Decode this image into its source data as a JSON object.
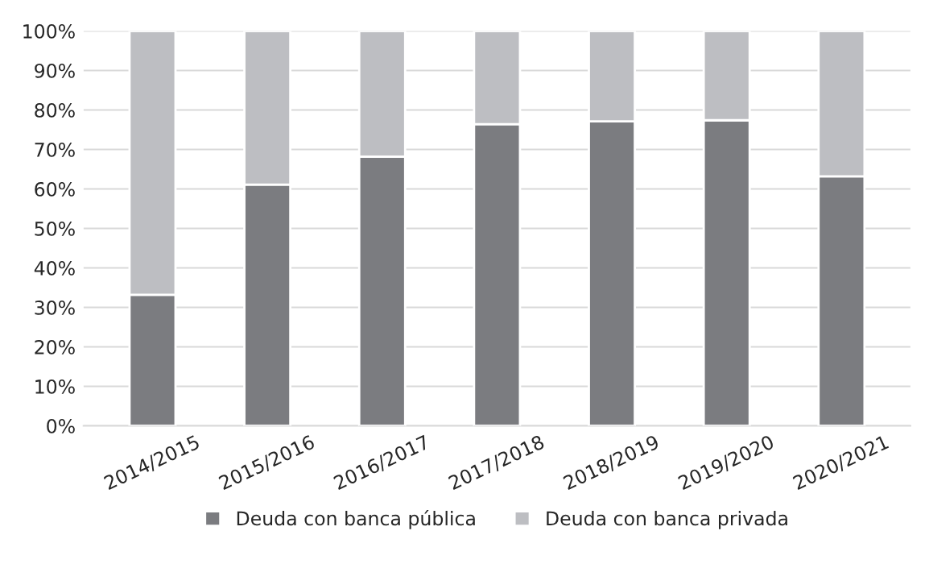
{
  "chart_data": {
    "type": "bar",
    "stacked": true,
    "categories": [
      "2014/2015",
      "2015/2016",
      "2016/2017",
      "2017/2018",
      "2018/2019",
      "2019/2020",
      "2020/2021"
    ],
    "series": [
      {
        "name": "Deuda con banca pública",
        "color": "#7b7c80",
        "values": [
          33.2,
          61.1,
          68.2,
          76.4,
          77.1,
          77.4,
          63.2
        ]
      },
      {
        "name": "Deuda con banca privada",
        "color": "#bdbec2",
        "values": [
          66.8,
          38.9,
          31.8,
          23.6,
          22.9,
          22.6,
          36.8
        ]
      }
    ],
    "ylim": [
      0,
      100
    ],
    "yticks": [
      {
        "value": 0,
        "label": "0%"
      },
      {
        "value": 10,
        "label": "10%"
      },
      {
        "value": 20,
        "label": "20%"
      },
      {
        "value": 30,
        "label": "30%"
      },
      {
        "value": 40,
        "label": "40%"
      },
      {
        "value": 50,
        "label": "50%"
      },
      {
        "value": 60,
        "label": "60%"
      },
      {
        "value": 70,
        "label": "70%"
      },
      {
        "value": 80,
        "label": "80%"
      },
      {
        "value": 90,
        "label": "90%"
      },
      {
        "value": 100,
        "label": "100%"
      }
    ],
    "grid": "y",
    "legend": "bottom"
  }
}
